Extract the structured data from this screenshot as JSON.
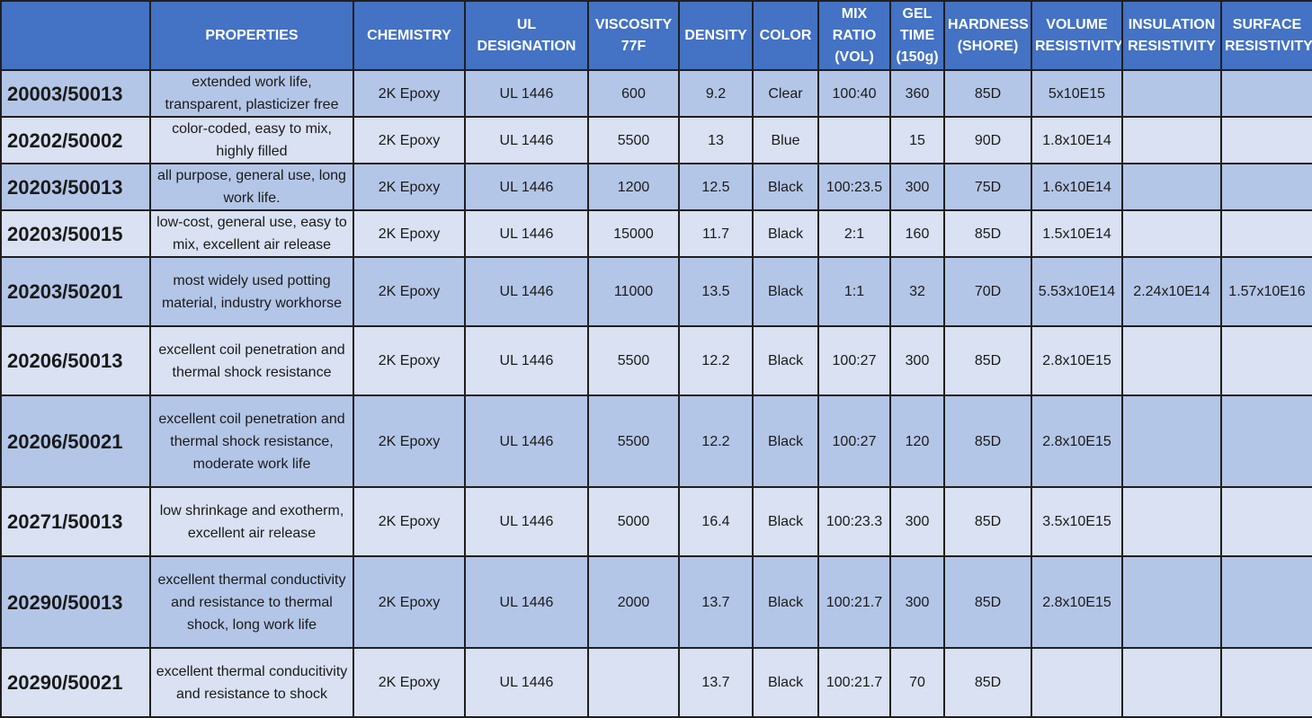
{
  "headers": {
    "part": "",
    "properties": "PROPERTIES",
    "chemistry": "CHEMISTRY",
    "ul": "UL DESIGNATION",
    "viscosity": "VISCOSITY 77F",
    "density": "DENSITY",
    "color": "COLOR",
    "mix": "MIX RATIO (VOL)",
    "gel": "GEL TIME (150g)",
    "hardness": "HARDNESS (SHORE)",
    "volume": "VOLUME RESISTIVITY",
    "insulation": "INSULATION RESISTIVITY",
    "surface": "SURFACE RESISTIVITY"
  },
  "rows": [
    {
      "part": "20003/50013",
      "properties": "extended work life, transparent, plasticizer free",
      "chemistry": "2K Epoxy",
      "ul": "UL 1446",
      "viscosity": "600",
      "density": "9.2",
      "color": "Clear",
      "mix": "100:40",
      "gel": "360",
      "hardness": "85D",
      "volume": "5x10E15",
      "insulation": "",
      "surface": ""
    },
    {
      "part": "20202/50002",
      "properties": "color-coded, easy to mix, highly filled",
      "chemistry": "2K Epoxy",
      "ul": "UL 1446",
      "viscosity": "5500",
      "density": "13",
      "color": "Blue",
      "mix": "",
      "gel": "15",
      "hardness": "90D",
      "volume": "1.8x10E14",
      "insulation": "",
      "surface": ""
    },
    {
      "part": "20203/50013",
      "properties": "all purpose, general use, long work life.",
      "chemistry": "2K Epoxy",
      "ul": "UL 1446",
      "viscosity": "1200",
      "density": "12.5",
      "color": "Black",
      "mix": "100:23.5",
      "gel": "300",
      "hardness": "75D",
      "volume": "1.6x10E14",
      "insulation": "",
      "surface": ""
    },
    {
      "part": "20203/50015",
      "properties": "low-cost, general use, easy to mix, excellent air release",
      "chemistry": "2K Epoxy",
      "ul": "UL 1446",
      "viscosity": "15000",
      "density": "11.7",
      "color": "Black",
      "mix": "2:1",
      "gel": "160",
      "hardness": "85D",
      "volume": "1.5x10E14",
      "insulation": "",
      "surface": ""
    },
    {
      "part": "20203/50201",
      "properties": "most widely used potting material, industry workhorse",
      "chemistry": "2K Epoxy",
      "ul": "UL 1446",
      "viscosity": "11000",
      "density": "13.5",
      "color": "Black",
      "mix": "1:1",
      "gel": "32",
      "hardness": "70D",
      "volume": "5.53x10E14",
      "insulation": "2.24x10E14",
      "surface": "1.57x10E16"
    },
    {
      "part": "20206/50013",
      "properties": "excellent coil penetration and thermal shock resistance",
      "chemistry": "2K Epoxy",
      "ul": "UL 1446",
      "viscosity": "5500",
      "density": "12.2",
      "color": "Black",
      "mix": "100:27",
      "gel": "300",
      "hardness": "85D",
      "volume": "2.8x10E15",
      "insulation": "",
      "surface": ""
    },
    {
      "part": "20206/50021",
      "properties": "excellent coil penetration and thermal shock resistance, moderate work life",
      "chemistry": "2K Epoxy",
      "ul": "UL 1446",
      "viscosity": "5500",
      "density": "12.2",
      "color": "Black",
      "mix": "100:27",
      "gel": "120",
      "hardness": "85D",
      "volume": "2.8x10E15",
      "insulation": "",
      "surface": ""
    },
    {
      "part": "20271/50013",
      "properties": "low shrinkage and exotherm, excellent air release",
      "chemistry": "2K Epoxy",
      "ul": "UL 1446",
      "viscosity": "5000",
      "density": "16.4",
      "color": "Black",
      "mix": "100:23.3",
      "gel": "300",
      "hardness": "85D",
      "volume": "3.5x10E15",
      "insulation": "",
      "surface": ""
    },
    {
      "part": "20290/50013",
      "properties": "excellent thermal conductivity and resistance to thermal shock, long work life",
      "chemistry": "2K Epoxy",
      "ul": "UL 1446",
      "viscosity": "2000",
      "density": "13.7",
      "color": "Black",
      "mix": "100:21.7",
      "gel": "300",
      "hardness": "85D",
      "volume": "2.8x10E15",
      "insulation": "",
      "surface": ""
    },
    {
      "part": "20290/50021",
      "properties": "excellent thermal conducitivity and resistance to shock",
      "chemistry": "2K Epoxy",
      "ul": "UL 1446",
      "viscosity": "",
      "density": "13.7",
      "color": "Black",
      "mix": "100:21.7",
      "gel": "70",
      "hardness": "85D",
      "volume": "",
      "insulation": "",
      "surface": ""
    }
  ],
  "colors": {
    "header": "#4472c4",
    "row_dark": "#b4c6e7",
    "row_light": "#d9e1f2",
    "border": "#1f1f1f"
  }
}
